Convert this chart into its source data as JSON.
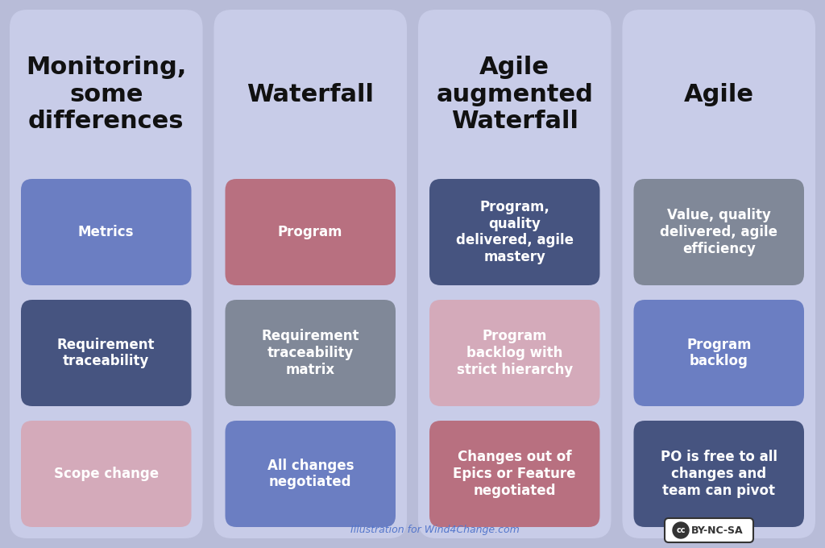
{
  "background_color": "#b8bcd8",
  "panel_color": "#c8cce8",
  "columns": [
    {
      "title": "Monitoring,\nsome\ndifferences",
      "title_fontsize": 22,
      "boxes": [
        {
          "text": "Metrics",
          "color": "#6b7ec2",
          "text_color": "#ffffff"
        },
        {
          "text": "Requirement\ntraceability",
          "color": "#465480",
          "text_color": "#ffffff"
        },
        {
          "text": "Scope change",
          "color": "#d4aaba",
          "text_color": "#ffffff"
        }
      ]
    },
    {
      "title": "Waterfall",
      "title_fontsize": 22,
      "boxes": [
        {
          "text": "Program",
          "color": "#b87080",
          "text_color": "#ffffff"
        },
        {
          "text": "Requirement\ntraceability\nmatrix",
          "color": "#808898",
          "text_color": "#ffffff"
        },
        {
          "text": "All changes\nnegotiated",
          "color": "#6b7ec2",
          "text_color": "#ffffff"
        }
      ]
    },
    {
      "title": "Agile\naugmented\nWaterfall",
      "title_fontsize": 22,
      "boxes": [
        {
          "text": "Program,\nquality\ndelivered, agile\nmastery",
          "color": "#465480",
          "text_color": "#ffffff"
        },
        {
          "text": "Program\nbacklog with\nstrict hierarchy",
          "color": "#d4aaba",
          "text_color": "#ffffff"
        },
        {
          "text": "Changes out of\nEpics or Feature\nnegotiated",
          "color": "#b87080",
          "text_color": "#ffffff"
        }
      ]
    },
    {
      "title": "Agile",
      "title_fontsize": 22,
      "boxes": [
        {
          "text": "Value, quality\ndelivered, agile\nefficiency",
          "color": "#808898",
          "text_color": "#ffffff"
        },
        {
          "text": "Program\nbacklog",
          "color": "#6b7ec2",
          "text_color": "#ffffff"
        },
        {
          "text": "PO is free to all\nchanges and\nteam can pivot",
          "color": "#465480",
          "text_color": "#ffffff"
        }
      ]
    }
  ],
  "footer_text": "Illustration for Wind4Change.com",
  "footer_color": "#5577cc",
  "figsize": [
    10.24,
    6.8
  ],
  "dpi": 100
}
